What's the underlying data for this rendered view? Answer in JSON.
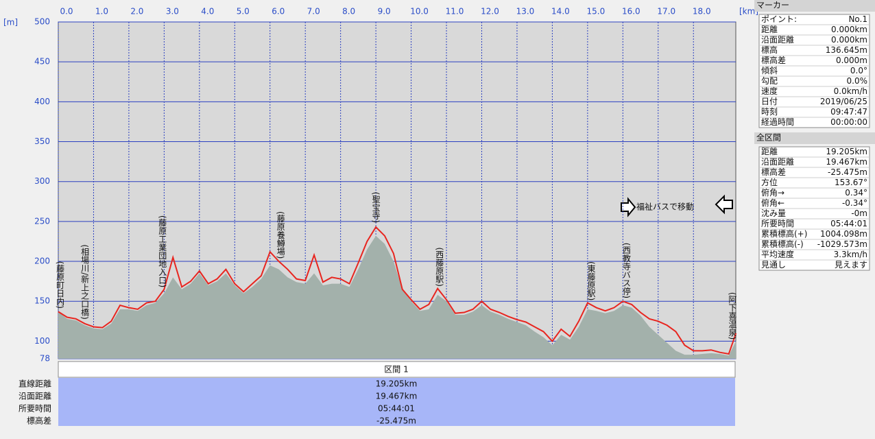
{
  "chart_data": {
    "type": "line",
    "x_unit": "[km]",
    "y_unit": "[m]",
    "x": [
      0,
      0.25,
      0.5,
      0.75,
      1,
      1.25,
      1.5,
      1.75,
      2,
      2.25,
      2.5,
      2.75,
      3,
      3.25,
      3.5,
      3.75,
      4,
      4.25,
      4.5,
      4.75,
      5,
      5.25,
      5.5,
      5.75,
      6,
      6.25,
      6.5,
      6.75,
      7,
      7.25,
      7.5,
      7.75,
      8,
      8.25,
      8.5,
      8.75,
      9,
      9.25,
      9.5,
      9.75,
      10,
      10.25,
      10.5,
      10.75,
      11,
      11.25,
      11.5,
      11.75,
      12,
      12.25,
      12.5,
      12.75,
      13,
      13.25,
      13.5,
      13.75,
      14,
      14.25,
      14.5,
      14.75,
      15,
      15.25,
      15.5,
      15.75,
      16,
      16.25,
      16.5,
      16.75,
      17,
      17.25,
      17.5,
      17.75,
      18,
      18.25,
      18.5,
      18.75,
      19,
      19.205
    ],
    "series": [
      {
        "color": "#a3b1ab",
        "fill": true,
        "values": [
          137,
          128,
          126,
          120,
          116,
          115,
          122,
          140,
          140,
          138,
          145,
          148,
          160,
          180,
          165,
          172,
          185,
          170,
          175,
          185,
          170,
          160,
          168,
          178,
          195,
          190,
          180,
          174,
          172,
          185,
          170,
          172,
          172,
          168,
          190,
          215,
          232,
          222,
          200,
          165,
          150,
          138,
          140,
          158,
          150,
          133,
          133,
          137,
          145,
          137,
          133,
          128,
          124,
          120,
          112,
          105,
          95,
          108,
          102,
          118,
          140,
          138,
          135,
          138,
          145,
          142,
          132,
          118,
          108,
          98,
          88,
          83,
          83,
          84,
          85,
          84,
          82,
          100
        ]
      },
      {
        "color": "#e8251f",
        "values": [
          137,
          130,
          128,
          122,
          118,
          117,
          125,
          145,
          142,
          140,
          148,
          150,
          165,
          205,
          168,
          175,
          188,
          172,
          178,
          190,
          172,
          162,
          172,
          182,
          212,
          200,
          190,
          178,
          176,
          208,
          174,
          180,
          178,
          172,
          198,
          225,
          243,
          232,
          210,
          165,
          152,
          140,
          146,
          166,
          152,
          135,
          136,
          140,
          150,
          140,
          136,
          131,
          127,
          124,
          118,
          112,
          100,
          115,
          106,
          125,
          148,
          142,
          138,
          142,
          150,
          146,
          136,
          128,
          125,
          120,
          112,
          95,
          88,
          88,
          89,
          86,
          84,
          110
        ]
      }
    ],
    "xlim": [
      0,
      19.2
    ],
    "ylim": [
      78,
      500
    ],
    "xticks": [
      {
        "value": 0,
        "label": "0.0"
      },
      {
        "value": 1,
        "label": "1.0"
      },
      {
        "value": 2,
        "label": "2.0"
      },
      {
        "value": 3,
        "label": "3.0"
      },
      {
        "value": 4,
        "label": "4.0"
      },
      {
        "value": 5,
        "label": "5.0"
      },
      {
        "value": 6,
        "label": "6.0"
      },
      {
        "value": 7,
        "label": "7.0"
      },
      {
        "value": 8,
        "label": "8.0"
      },
      {
        "value": 9,
        "label": "9.0"
      },
      {
        "value": 10,
        "label": "10.0"
      },
      {
        "value": 11,
        "label": "11.0"
      },
      {
        "value": 12,
        "label": "12.0"
      },
      {
        "value": 13,
        "label": "13.0"
      },
      {
        "value": 14,
        "label": "14.0"
      },
      {
        "value": 15,
        "label": "15.0"
      },
      {
        "value": 16,
        "label": "16.0"
      },
      {
        "value": 17,
        "label": "17.0"
      },
      {
        "value": 18,
        "label": "18.0"
      }
    ],
    "yticks": [
      78,
      100,
      150,
      200,
      250,
      300,
      350,
      400,
      450,
      500
    ],
    "grid": true,
    "annotations": [
      {
        "text": "(藤原町日内)",
        "x": 0.05
      },
      {
        "text": "(相場川/新上之口橋)",
        "x": 0.75
      },
      {
        "text": "(藤原工業団地入口)",
        "x": 2.95
      },
      {
        "text": "(藤原養鱒場)",
        "x": 6.3
      },
      {
        "text": "(聖宝寺)",
        "x": 9.0
      },
      {
        "text": "(西藤原駅)",
        "x": 10.8
      },
      {
        "text": "(東藤原駅)",
        "x": 15.1
      },
      {
        "text": "(西教寺バス停)",
        "x": 16.1
      },
      {
        "text": "(阿下喜温泉)",
        "x": 19.1
      }
    ],
    "note": "福祉バスで移動"
  },
  "section": {
    "header": "区間 1",
    "rows": [
      [
        "直線距離",
        "19.205km"
      ],
      [
        "沿面距離",
        "19.467km"
      ],
      [
        "所要時間",
        "05:44:01"
      ],
      [
        "標高差",
        "-25.475m"
      ]
    ]
  },
  "marker": {
    "title": "マーカー",
    "rows": [
      [
        "ポイント:",
        "No.1"
      ],
      [
        "距離",
        "0.000km"
      ],
      [
        "沿面距離",
        "0.000km"
      ],
      [
        "標高",
        "136.645m"
      ],
      [
        "標高差",
        "0.000m"
      ],
      [
        "傾斜",
        "0.0°"
      ],
      [
        "勾配",
        "0.0%"
      ],
      [
        "速度",
        "0.0km/h"
      ],
      [
        "日付",
        "2019/06/25"
      ],
      [
        "時刻",
        "09:47:47"
      ],
      [
        "経過時間",
        "00:00:00"
      ]
    ]
  },
  "total": {
    "title": "全区間",
    "rows": [
      [
        "距離",
        "19.205km"
      ],
      [
        "沿面距離",
        "19.467km"
      ],
      [
        "標高差",
        "-25.475m"
      ],
      [
        "方位",
        "153.67°"
      ],
      [
        "俯角→",
        "0.34°"
      ],
      [
        "俯角←",
        "-0.34°"
      ],
      [
        "沈み量",
        "-0m"
      ],
      [
        "所要時間",
        "05:44:01"
      ],
      [
        "累積標高(+)",
        "1004.098m"
      ],
      [
        "累積標高(-)",
        "-1029.573m"
      ],
      [
        "平均速度",
        "3.3km/h"
      ],
      [
        "見通し",
        "見えます"
      ]
    ]
  }
}
